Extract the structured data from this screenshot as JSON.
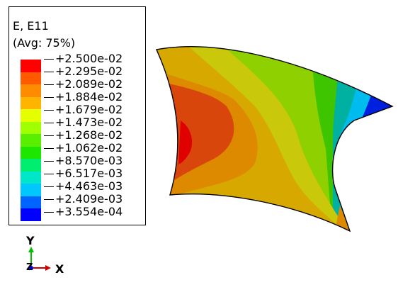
{
  "legend": {
    "title": "E, E11",
    "subtitle": "(Avg: 75%)",
    "labels": [
      "+2.500e-02",
      "+2.295e-02",
      "+2.089e-02",
      "+1.884e-02",
      "+1.679e-02",
      "+1.473e-02",
      "+1.268e-02",
      "+1.062e-02",
      "+8.570e-03",
      "+6.517e-03",
      "+4.463e-03",
      "+2.409e-03",
      "+3.554e-04"
    ],
    "colors": [
      "#ff0000",
      "#ff5a00",
      "#ff8c00",
      "#ffb400",
      "#e6ff00",
      "#a0ff00",
      "#5aee00",
      "#1de600",
      "#00ee6f",
      "#00e6c8",
      "#00c8ff",
      "#0064ff",
      "#0000ff"
    ]
  },
  "triad": {
    "x_label": "X",
    "y_label": "Y",
    "z_label": "Z",
    "colors": {
      "x": "#ff0000",
      "y": "#00c000",
      "z": "#0000ff"
    }
  },
  "model": {
    "colors": {
      "dark_red": "#d9460c",
      "orange": "#de8a00",
      "yellow_orange": "#d6a800",
      "yellow": "#c9c80a",
      "lime": "#8fd000",
      "green": "#3fc400",
      "teal": "#00b0a0",
      "cyan": "#00bbee",
      "blue": "#0020e0"
    }
  }
}
